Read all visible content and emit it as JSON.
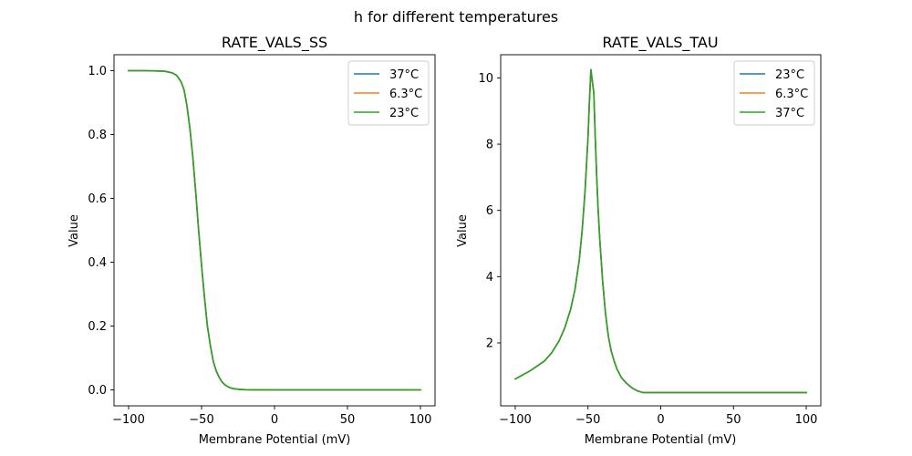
{
  "figure": {
    "suptitle": "h for different temperatures"
  },
  "chart_data": [
    {
      "type": "line",
      "title": "RATE_VALS_SS",
      "xlabel": "Membrane Potential (mV)",
      "ylabel": "Value",
      "xlim": [
        -110,
        110
      ],
      "ylim": [
        -0.05,
        1.05
      ],
      "xticks": [
        -100,
        -50,
        0,
        50,
        100
      ],
      "xtick_labels": [
        "−100",
        "−50",
        "0",
        "50",
        "100"
      ],
      "yticks": [
        0.0,
        0.2,
        0.4,
        0.6,
        0.8,
        1.0
      ],
      "ytick_labels": [
        "0.0",
        "0.2",
        "0.4",
        "0.6",
        "0.8",
        "1.0"
      ],
      "grid": false,
      "legend_position": "top-right",
      "x": [
        -100,
        -90,
        -80,
        -75,
        -70,
        -67,
        -64,
        -62,
        -60,
        -58,
        -56,
        -54,
        -52,
        -50,
        -48,
        -46,
        -44,
        -42,
        -40,
        -38,
        -36,
        -34,
        -32,
        -30,
        -27,
        -24,
        -20,
        -15,
        -10,
        0,
        25,
        50,
        75,
        100
      ],
      "series": [
        {
          "name": "37°C",
          "color": "#1f77b4",
          "values": [
            1.0,
            1.0,
            0.999,
            0.998,
            0.993,
            0.985,
            0.965,
            0.94,
            0.89,
            0.82,
            0.73,
            0.62,
            0.5,
            0.39,
            0.29,
            0.2,
            0.14,
            0.09,
            0.06,
            0.04,
            0.025,
            0.016,
            0.01,
            0.006,
            0.003,
            0.0015,
            0.0006,
            0.0002,
            0.0001,
            0.0,
            0.0,
            0.0,
            0.0,
            0.0
          ]
        },
        {
          "name": "6.3°C",
          "color": "#ff7f0e",
          "values": [
            1.0,
            1.0,
            0.999,
            0.998,
            0.993,
            0.985,
            0.965,
            0.94,
            0.89,
            0.82,
            0.73,
            0.62,
            0.5,
            0.39,
            0.29,
            0.2,
            0.14,
            0.09,
            0.06,
            0.04,
            0.025,
            0.016,
            0.01,
            0.006,
            0.003,
            0.0015,
            0.0006,
            0.0002,
            0.0001,
            0.0,
            0.0,
            0.0,
            0.0,
            0.0
          ]
        },
        {
          "name": "23°C",
          "color": "#2ca02c",
          "values": [
            1.0,
            1.0,
            0.999,
            0.998,
            0.993,
            0.985,
            0.965,
            0.94,
            0.89,
            0.82,
            0.73,
            0.62,
            0.5,
            0.39,
            0.29,
            0.2,
            0.14,
            0.09,
            0.06,
            0.04,
            0.025,
            0.016,
            0.01,
            0.006,
            0.003,
            0.0015,
            0.0006,
            0.0002,
            0.0001,
            0.0,
            0.0,
            0.0,
            0.0,
            0.0
          ]
        }
      ]
    },
    {
      "type": "line",
      "title": "RATE_VALS_TAU",
      "xlabel": "Membrane Potential (mV)",
      "ylabel": "Value",
      "xlim": [
        -110,
        110
      ],
      "ylim": [
        0.1,
        10.7
      ],
      "xticks": [
        -100,
        -50,
        0,
        50,
        100
      ],
      "xtick_labels": [
        "−100",
        "−50",
        "0",
        "50",
        "100"
      ],
      "yticks": [
        2,
        4,
        6,
        8,
        10
      ],
      "ytick_labels": [
        "2",
        "4",
        "6",
        "8",
        "10"
      ],
      "grid": false,
      "legend_position": "top-right",
      "x": [
        -100,
        -95,
        -90,
        -85,
        -80,
        -75,
        -70,
        -66,
        -62,
        -59,
        -56,
        -54,
        -52,
        -50,
        -49,
        -48,
        -47,
        -46,
        -45,
        -44,
        -43,
        -42,
        -40,
        -38,
        -36,
        -34,
        -32,
        -30,
        -27,
        -24,
        -20,
        -16,
        -12,
        -5,
        0,
        25,
        50,
        75,
        100
      ],
      "series": [
        {
          "name": "23°C",
          "color": "#1f77b4",
          "values": [
            0.91,
            1.03,
            1.15,
            1.3,
            1.45,
            1.7,
            2.05,
            2.45,
            3.0,
            3.6,
            4.5,
            5.4,
            6.6,
            8.2,
            9.3,
            10.25,
            9.9,
            9.55,
            8.2,
            7.0,
            6.0,
            5.2,
            3.9,
            2.9,
            2.2,
            1.75,
            1.45,
            1.2,
            0.95,
            0.8,
            0.65,
            0.55,
            0.5,
            0.5,
            0.5,
            0.5,
            0.5,
            0.5,
            0.5
          ]
        },
        {
          "name": "6.3°C",
          "color": "#ff7f0e",
          "values": [
            0.91,
            1.03,
            1.15,
            1.3,
            1.45,
            1.7,
            2.05,
            2.45,
            3.0,
            3.6,
            4.5,
            5.4,
            6.6,
            8.2,
            9.3,
            10.25,
            9.9,
            9.55,
            8.2,
            7.0,
            6.0,
            5.2,
            3.9,
            2.9,
            2.2,
            1.75,
            1.45,
            1.2,
            0.95,
            0.8,
            0.65,
            0.55,
            0.5,
            0.5,
            0.5,
            0.5,
            0.5,
            0.5,
            0.5
          ]
        },
        {
          "name": "37°C",
          "color": "#2ca02c",
          "values": [
            0.91,
            1.03,
            1.15,
            1.3,
            1.45,
            1.7,
            2.05,
            2.45,
            3.0,
            3.6,
            4.5,
            5.4,
            6.6,
            8.2,
            9.3,
            10.25,
            9.9,
            9.55,
            8.2,
            7.0,
            6.0,
            5.2,
            3.9,
            2.9,
            2.2,
            1.75,
            1.45,
            1.2,
            0.95,
            0.8,
            0.65,
            0.55,
            0.5,
            0.5,
            0.5,
            0.5,
            0.5,
            0.5,
            0.5
          ]
        }
      ]
    }
  ]
}
